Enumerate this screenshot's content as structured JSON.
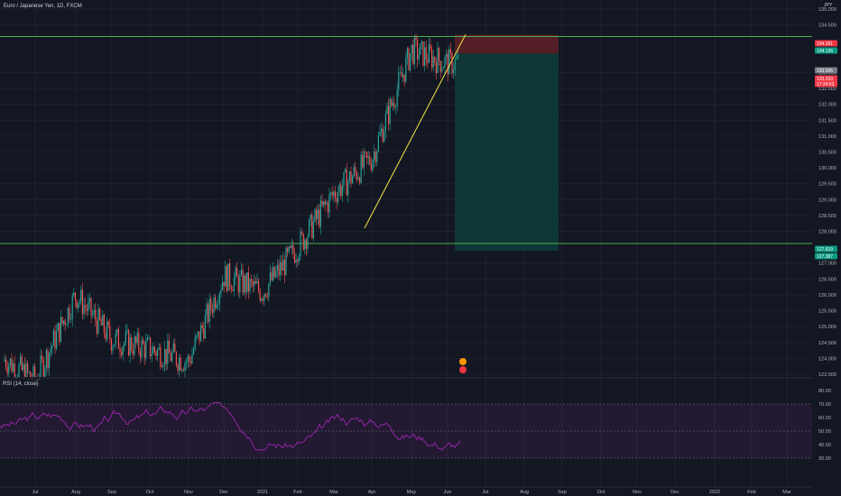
{
  "header": {
    "symbol_title": "Euro / Japanese Yen, 1D, FXCM",
    "currency": "JPY"
  },
  "rsi": {
    "label": "RSI (14, close)",
    "axis": [
      "80.00",
      "70.00",
      "60.00",
      "50.00",
      "40.00",
      "30.00"
    ],
    "color": "#9c27b0"
  },
  "price_axis": {
    "labels": [
      "135.000",
      "134.500",
      "133.000",
      "132.500",
      "132.000",
      "131.500",
      "131.000",
      "130.500",
      "130.000",
      "129.500",
      "129.000",
      "128.500",
      "128.000",
      "127.000",
      "126.500",
      "126.000",
      "125.500",
      "125.000",
      "124.500",
      "124.000",
      "123.500"
    ],
    "badges": [
      {
        "text": "134.161",
        "color": "#f23645"
      },
      {
        "text": "134.135",
        "color": "#089981"
      },
      {
        "text": "133.595",
        "color": "#787b86"
      },
      {
        "text": "133.333",
        "color": "#f23645"
      },
      {
        "text": "17:24:53",
        "color": "#f23645"
      },
      {
        "text": "127.619",
        "color": "#089981"
      },
      {
        "text": "127.387",
        "color": "#089981"
      }
    ]
  },
  "time_axis": {
    "labels": [
      "Jul",
      "Aug",
      "Sep",
      "Oct",
      "Nov",
      "Dec",
      "2021",
      "Feb",
      "Mar",
      "Apr",
      "May",
      "Jun",
      "Jul",
      "Aug",
      "Sep",
      "Oct",
      "Nov",
      "Dec",
      "2022",
      "Feb",
      "Mar"
    ]
  },
  "colors": {
    "background": "#131722",
    "up": "#26a69a",
    "down": "#ef5350",
    "level_line": "#4caf50",
    "trendline": "#f5e642",
    "stop_zone": "#5b1f27",
    "target_zone": "#0f3b3a"
  },
  "chart_data": {
    "type": "candlestick",
    "symbol": "Euro / Japanese Yen",
    "timeframe": "1D",
    "source": "FXCM",
    "price_range": [
      123.4,
      135.1
    ],
    "horizontal_levels": [
      134.135,
      127.619
    ],
    "trendline": {
      "from": {
        "date": "Mar 2021",
        "price": 128.1
      },
      "to": {
        "date": "Jun 2021",
        "price": 134.2
      }
    },
    "short_position": {
      "entry": 133.595,
      "stop": 134.161,
      "target": 127.387
    },
    "close_approx": 133.333,
    "rsi_range": [
      30,
      80
    ],
    "rsi_bands": [
      70,
      50,
      30
    ],
    "monthly_closes_approx": [
      {
        "month": "Jul",
        "close": 123.3
      },
      {
        "month": "Aug",
        "close": 126.0
      },
      {
        "month": "Sep",
        "close": 124.6
      },
      {
        "month": "Oct",
        "close": 124.3
      },
      {
        "month": "Nov",
        "close": 123.9
      },
      {
        "month": "Dec",
        "close": 126.6
      },
      {
        "month": "2021",
        "close": 126.1
      },
      {
        "month": "Feb",
        "close": 127.5
      },
      {
        "month": "Mar",
        "close": 129.2
      },
      {
        "month": "Apr",
        "close": 130.3
      },
      {
        "month": "May",
        "close": 133.7
      },
      {
        "month": "Jun",
        "close": 133.3
      }
    ]
  }
}
